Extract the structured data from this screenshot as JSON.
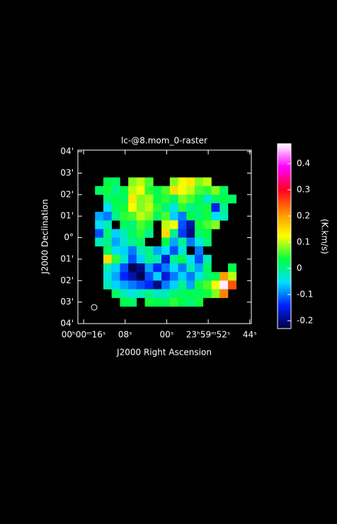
{
  "chart_data": {
    "type": "heatmap",
    "title": "lc-@8.mom_0-raster",
    "x_label": "J2000 Right Ascension",
    "y_label": "J2000 Declination",
    "colorbar_label": "(K.km/s)",
    "xlim": [
      17.1,
      -16.3
    ],
    "ylim": [
      -4.0,
      4.07
    ],
    "xticks": [
      {
        "value": 16,
        "label": "00ʰ00ᵐ16ˢ"
      },
      {
        "value": 8,
        "label": "08ˢ"
      },
      {
        "value": 0,
        "label": "00ˢ"
      },
      {
        "value": -8,
        "label": "23ʰ59ᵐ52ˢ"
      },
      {
        "value": -16,
        "label": "44ˢ"
      }
    ],
    "yticks": [
      {
        "value": 4,
        "label": "04'"
      },
      {
        "value": 3,
        "label": "03'"
      },
      {
        "value": 2,
        "label": "02'"
      },
      {
        "value": 1,
        "label": "01'"
      },
      {
        "value": 0,
        "label": "0°"
      },
      {
        "value": -1,
        "label": "01'"
      },
      {
        "value": -2,
        "label": "02'"
      },
      {
        "value": -3,
        "label": "03'"
      },
      {
        "value": -4,
        "label": "04'"
      }
    ],
    "clim": [
      -0.23,
      0.476
    ],
    "cticks": [
      0.4,
      0.3,
      0.2,
      0.1,
      0,
      -0.1,
      -0.2
    ],
    "colormap": [
      "#000040",
      "#0020ff",
      "#00e0ff",
      "#00ff40",
      "#ffff00",
      "#ff9000",
      "#ff0020",
      "#ff00ff",
      "#ffffff"
    ],
    "x": [
      13.0,
      11.4,
      9.8,
      8.2,
      6.6,
      5.0,
      3.4,
      1.8,
      0.2,
      -1.4,
      -3.0,
      -4.6,
      -6.2,
      -7.8,
      -9.4,
      -11.0,
      -12.6,
      -14.2
    ],
    "y": [
      2.6,
      2.2,
      1.8,
      1.4,
      1.0,
      0.6,
      0.2,
      -0.2,
      -0.6,
      -1.0,
      -1.4,
      -1.8,
      -2.2,
      -2.6,
      -3.0
    ],
    "values": [
      [
        null,
        0.03,
        0.02,
        null,
        0.08,
        0.1,
        0.06,
        null,
        null,
        0.08,
        0.12,
        0.14,
        0.08,
        0.1,
        null,
        null,
        null,
        null
      ],
      [
        0.02,
        0.04,
        0.0,
        0.03,
        0.1,
        0.12,
        0.05,
        0.03,
        0.06,
        0.15,
        0.12,
        0.1,
        0.06,
        0.05,
        0.08,
        0.02,
        null,
        null
      ],
      [
        null,
        0.01,
        0.03,
        0.02,
        0.14,
        0.08,
        0.09,
        0.03,
        0.05,
        0.02,
        0.08,
        0.06,
        0.03,
        -0.03,
        0.02,
        0.03,
        0.02,
        null
      ],
      [
        null,
        -0.05,
        0.02,
        0.04,
        0.12,
        0.08,
        0.1,
        0.05,
        0.01,
        -0.04,
        0.05,
        0.0,
        0.02,
        0.04,
        -0.15,
        0.0,
        null,
        null
      ],
      [
        -0.08,
        -0.1,
        0.0,
        0.05,
        0.06,
        0.1,
        0.08,
        0.02,
        0.06,
        -0.06,
        -0.1,
        0.03,
        0.01,
        0.04,
        -0.05,
        -0.02,
        null,
        null
      ],
      [
        -0.05,
        -0.02,
        null,
        0.02,
        0.01,
        0.06,
        0.04,
        null,
        0.1,
        0.12,
        -0.12,
        -0.18,
        0.04,
        0.06,
        0.08,
        null,
        null,
        null
      ],
      [
        -0.12,
        0.01,
        -0.06,
        -0.02,
        0.02,
        0.05,
        0.0,
        null,
        0.15,
        0.0,
        -0.13,
        -0.2,
        0.02,
        0.03,
        null,
        null,
        null,
        null
      ],
      [
        -0.02,
        0.0,
        -0.08,
        -0.03,
        0.0,
        0.02,
        null,
        null,
        0.03,
        -0.08,
        0.0,
        -0.1,
        -0.04,
        0.01,
        null,
        null,
        null,
        null
      ],
      [
        null,
        0.02,
        -0.05,
        -0.06,
        -0.1,
        -0.02,
        0.0,
        -0.08,
        -0.05,
        -0.12,
        -0.04,
        null,
        -0.1,
        null,
        null,
        null,
        null,
        null
      ],
      [
        null,
        0.15,
        0.05,
        -0.03,
        -0.12,
        -0.06,
        0.0,
        -0.02,
        -0.16,
        0.0,
        0.03,
        -0.05,
        -0.12,
        -0.02,
        null,
        null,
        null,
        null
      ],
      [
        null,
        -0.02,
        -0.06,
        -0.12,
        -0.22,
        -0.2,
        -0.08,
        -0.14,
        -0.1,
        -0.05,
        -0.1,
        -0.02,
        -0.08,
        0.02,
        null,
        null,
        0.03,
        null
      ],
      [
        null,
        -0.04,
        -0.08,
        -0.14,
        -0.18,
        -0.22,
        -0.12,
        -0.06,
        -0.16,
        -0.1,
        -0.06,
        -0.1,
        -0.04,
        0.01,
        0.03,
        0.2,
        0.1,
        null
      ],
      [
        null,
        -0.02,
        -0.06,
        -0.08,
        -0.1,
        -0.12,
        -0.14,
        -0.2,
        -0.1,
        -0.06,
        0.0,
        -0.08,
        0.04,
        0.06,
        0.12,
        0.47,
        0.25,
        null
      ],
      [
        null,
        null,
        0.02,
        -0.02,
        -0.04,
        -0.02,
        0.0,
        -0.03,
        -0.02,
        0.01,
        0.02,
        0.03,
        0.02,
        0.04,
        0.08,
        0.22,
        null,
        null
      ],
      [
        null,
        null,
        null,
        0.03,
        0.02,
        null,
        0.04,
        0.03,
        0.02,
        0.05,
        0.03,
        0.01,
        0.04,
        null,
        null,
        null,
        null,
        null
      ]
    ]
  }
}
